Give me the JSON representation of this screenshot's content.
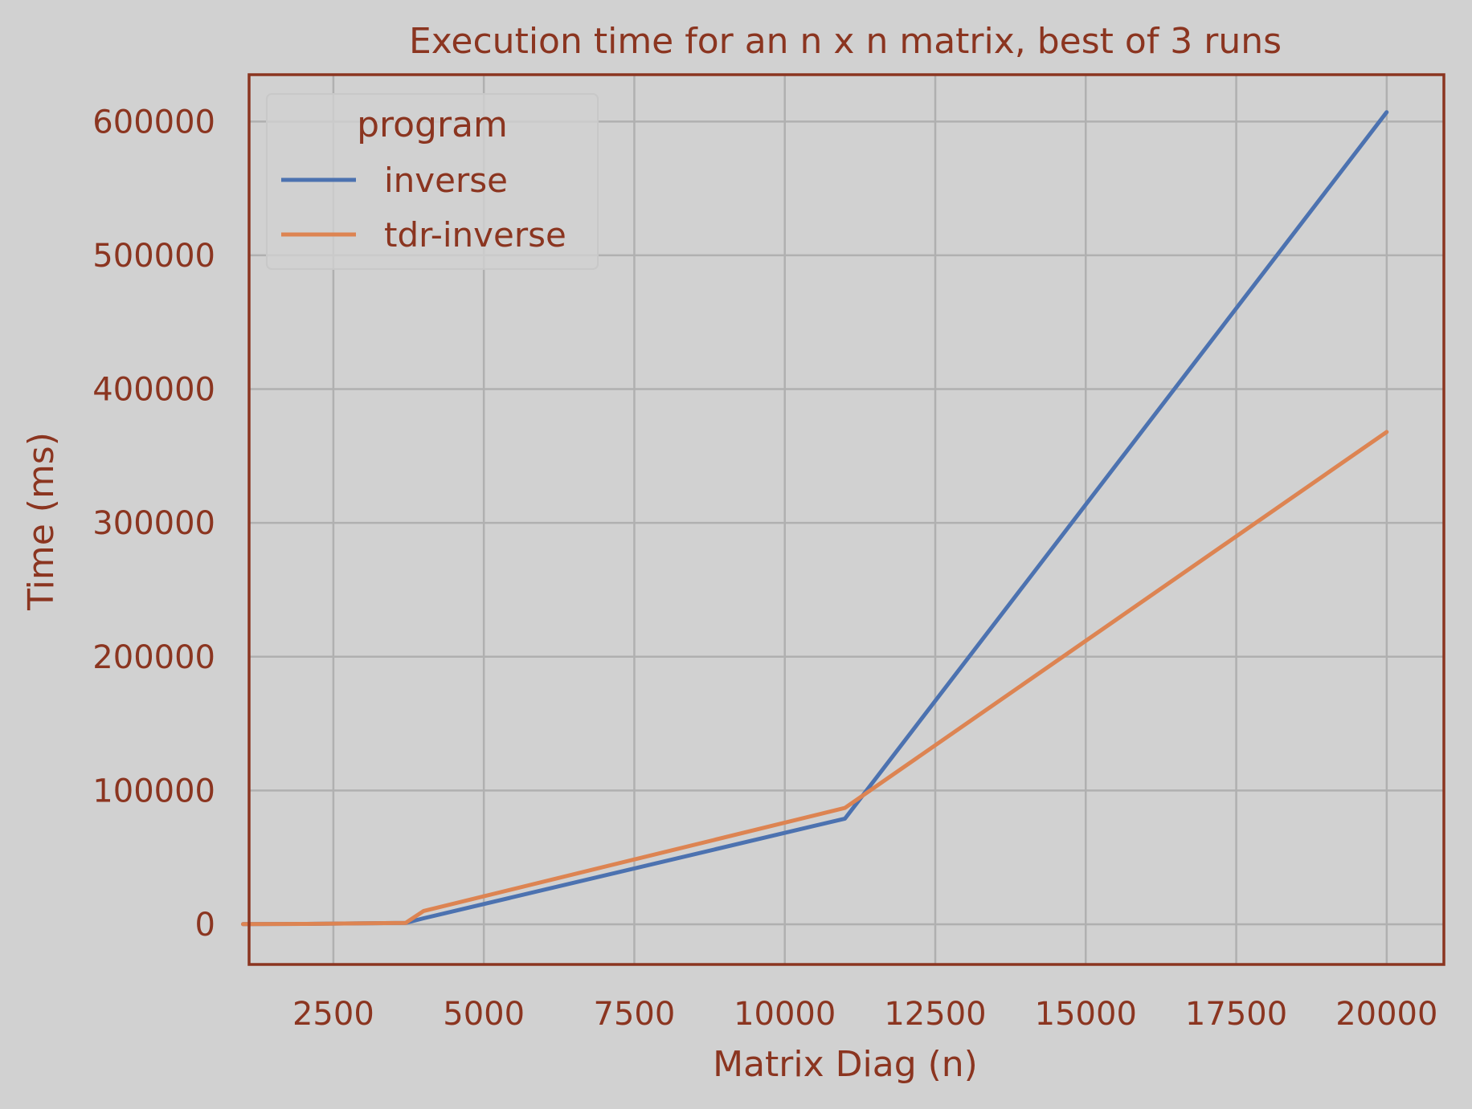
{
  "chart_data": {
    "type": "line",
    "title": "Execution time for an n x n matrix, best of 3 runs",
    "xlabel": "Matrix Diag (n)",
    "ylabel": "Time (ms)",
    "xlim": [
      1100,
      20950
    ],
    "ylim": [
      -30000,
      635000
    ],
    "xticks": [
      2500,
      5000,
      7500,
      10000,
      12500,
      15000,
      17500,
      20000
    ],
    "yticks": [
      0,
      100000,
      200000,
      300000,
      400000,
      500000,
      600000
    ],
    "grid": true,
    "legend": {
      "title": "program",
      "placement": "top-left"
    },
    "series": [
      {
        "name": "inverse",
        "color": "#4c72b0",
        "x": [
          1000,
          2000,
          3000,
          3700,
          4000,
          11000,
          20000
        ],
        "y": [
          100,
          300,
          800,
          1000,
          4500,
          79000,
          607000
        ]
      },
      {
        "name": "tdr-inverse",
        "color": "#dd8452",
        "x": [
          1000,
          2000,
          3000,
          3700,
          4000,
          11000,
          20000
        ],
        "y": [
          100,
          300,
          800,
          1000,
          10000,
          87000,
          368000
        ]
      }
    ]
  },
  "style": {
    "background": "#d1d1d1",
    "text_color": "#8b3520",
    "spine_color": "#8b3520",
    "grid_color": "#b0b0b0"
  }
}
